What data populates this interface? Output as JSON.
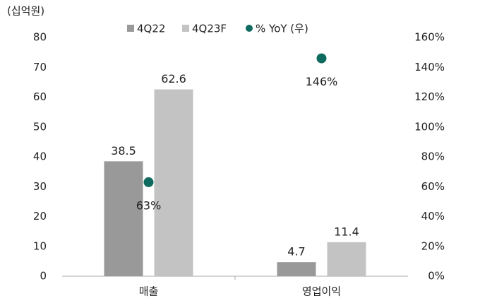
{
  "chart_data": {
    "type": "bar",
    "y_label": "(십억원)",
    "categories": [
      "매출",
      "영업이익"
    ],
    "series": [
      {
        "name": "4Q22",
        "color": "#999999",
        "values": [
          38.5,
          4.7
        ]
      },
      {
        "name": "4Q23F",
        "color": "#c3c3c3",
        "values": [
          62.6,
          11.4
        ]
      },
      {
        "name": "% YoY (우)",
        "color": "#0f6b5f",
        "type": "scatter",
        "axis": "y2",
        "values": [
          63,
          146
        ],
        "value_labels": [
          "63%",
          "146%"
        ]
      }
    ],
    "ylim": [
      0,
      80
    ],
    "yticks": [
      0,
      10,
      20,
      30,
      40,
      50,
      60,
      70,
      80
    ],
    "y2lim": [
      0,
      160
    ],
    "y2ticks": [
      {
        "value": 0,
        "label": "0%"
      },
      {
        "value": 20,
        "label": "20%"
      },
      {
        "value": 40,
        "label": "40%"
      },
      {
        "value": 60,
        "label": "60%"
      },
      {
        "value": 80,
        "label": "80%"
      },
      {
        "value": 100,
        "label": "100%"
      },
      {
        "value": 120,
        "label": "120%"
      },
      {
        "value": 140,
        "label": "140%"
      },
      {
        "value": 160,
        "label": "160%"
      }
    ],
    "grid": false
  }
}
